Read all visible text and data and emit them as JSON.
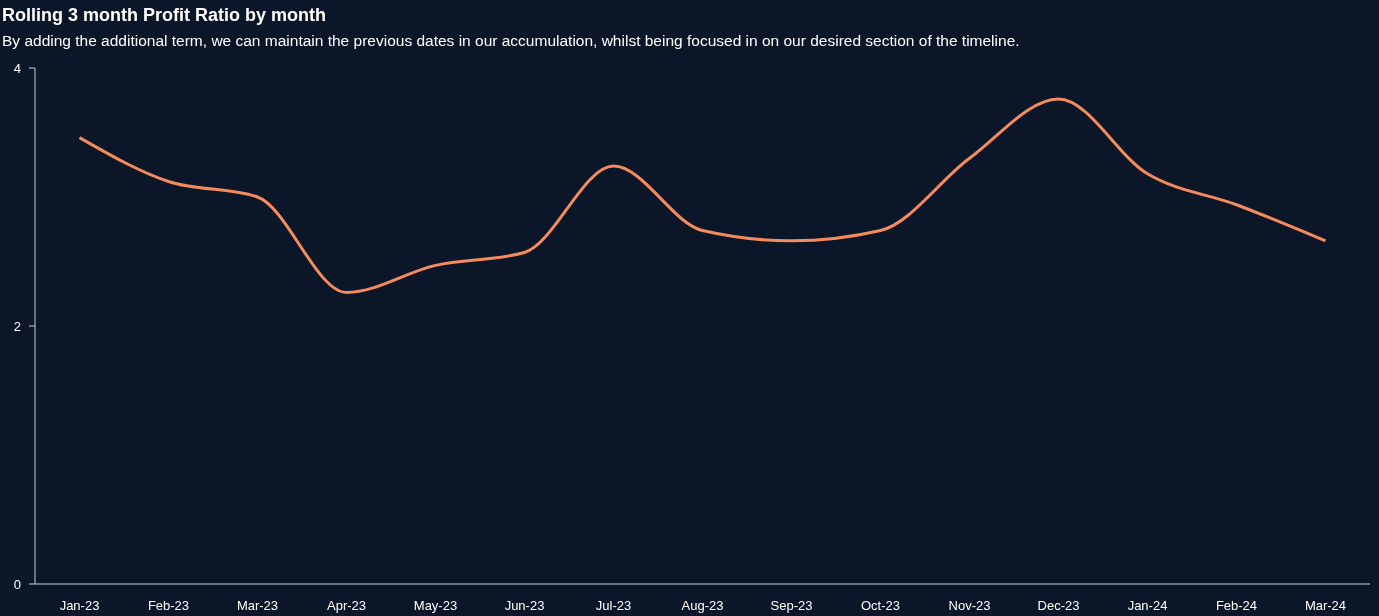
{
  "chart_data": {
    "type": "line",
    "title": "Rolling 3 month Profit Ratio by month",
    "subtitle": "By adding the additional term, we can maintain the previous dates in our accumulation, whilst being focused in on our desired section of the timeline.",
    "categories": [
      "Jan-23",
      "Feb-23",
      "Mar-23",
      "Apr-23",
      "May-23",
      "Jun-23",
      "Jul-23",
      "Aug-23",
      "Sep-23",
      "Oct-23",
      "Nov-23",
      "Dec-23",
      "Jan-24",
      "Feb-24",
      "Mar-24"
    ],
    "series": [
      {
        "color": "#f58b5c",
        "values": [
          3.46,
          3.12,
          3.0,
          2.26,
          2.47,
          2.57,
          3.24,
          2.74,
          2.66,
          2.74,
          3.3,
          3.76,
          3.18,
          2.94,
          2.66
        ]
      }
    ],
    "ylim": [
      0,
      4
    ],
    "yticks": [
      0,
      2,
      4
    ],
    "marker": "none",
    "line_style": "solid"
  }
}
